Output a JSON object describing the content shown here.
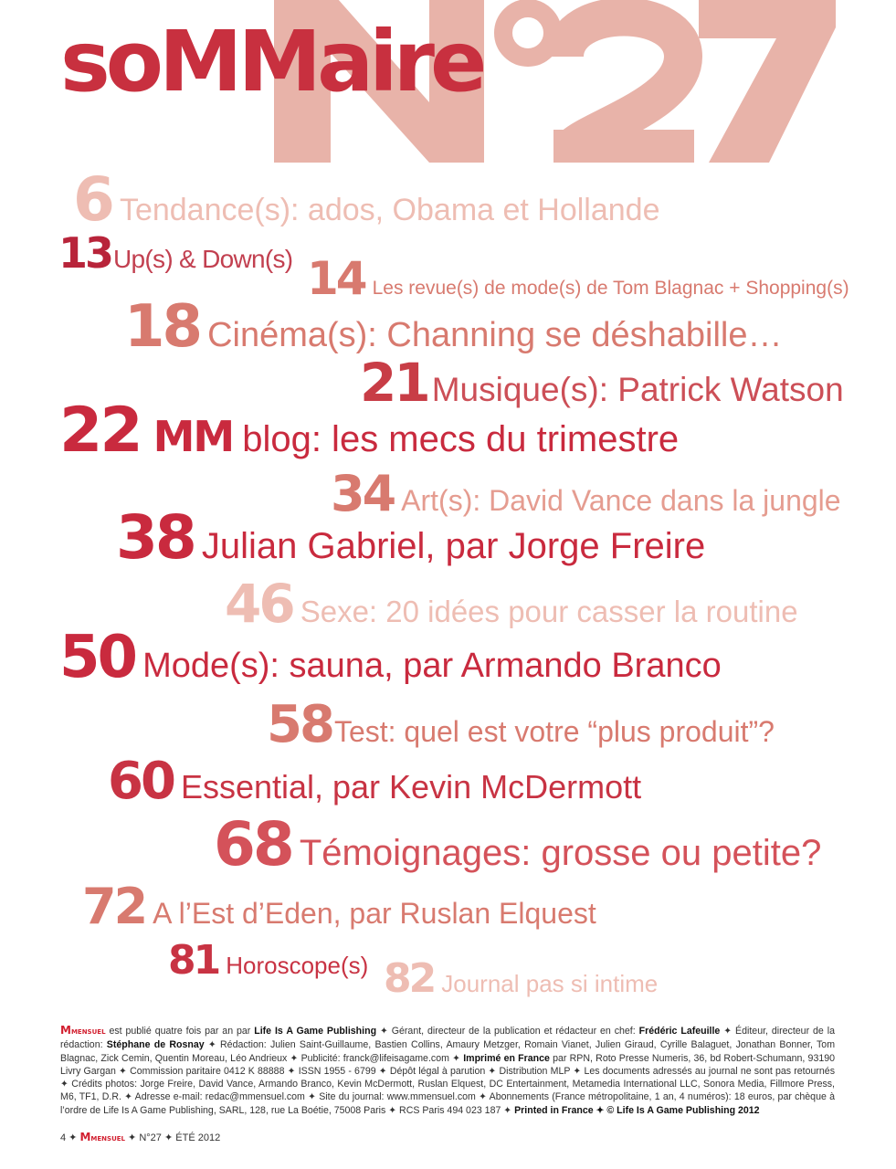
{
  "header": {
    "title": "soMMaire",
    "issue": "N°27"
  },
  "colors": {
    "crimson": "#c92a3e",
    "salmon": "#d87a6f",
    "pale": "#eebdb3",
    "issue_number": "#e8b3a9"
  },
  "entries": [
    {
      "page": "6",
      "text": "Tendance(s): ados, Obama et Hollande"
    },
    {
      "page": "13",
      "text": "Up(s) & Down(s)"
    },
    {
      "page": "14",
      "text": "Les revue(s) de mode(s) de Tom Blagnac + Shopping(s)"
    },
    {
      "page": "18",
      "text": "Cinéma(s): Channing se déshabille…"
    },
    {
      "page": "21",
      "text": "Musique(s): Patrick Watson"
    },
    {
      "page": "22",
      "prefix": "MM",
      "text": "blog: les mecs du trimestre"
    },
    {
      "page": "34",
      "text": "Art(s): David Vance dans la jungle"
    },
    {
      "page": "38",
      "text": "Julian Gabriel, par Jorge Freire"
    },
    {
      "page": "46",
      "text": "Sexe: 20 idées pour casser la routine"
    },
    {
      "page": "50",
      "text": "Mode(s): sauna, par Armando Branco"
    },
    {
      "page": "58",
      "text": "Test: quel est votre “plus produit”?"
    },
    {
      "page": "60",
      "text": "Essential, par Kevin McDermott"
    },
    {
      "page": "68",
      "text": "Témoignages: grosse ou petite?"
    },
    {
      "page": "72",
      "text": "A l’Est d’Eden, par Ruslan Elquest"
    },
    {
      "page": "81",
      "text": "Horoscope(s)"
    },
    {
      "page": "82",
      "text": "Journal pas si intime"
    }
  ],
  "colophon": {
    "brand": "M",
    "brand_small": "MENSUEL",
    "segments": [
      {
        "text": " est publié quatre fois par an par "
      },
      {
        "text": "Life Is A Game Publishing",
        "bold": true
      },
      {
        "text": " ✦ Gérant, directeur de la publication et rédacteur en chef: "
      },
      {
        "text": "Frédéric Lafeuille",
        "bold": true
      },
      {
        "text": " ✦ Éditeur, directeur de la rédaction: "
      },
      {
        "text": "Stéphane de Rosnay",
        "bold": true
      },
      {
        "text": " ✦ Rédaction: Julien Saint-Guillaume, Bastien Collins, Amaury Metzger, Romain Vianet, Julien Giraud, Cyrille Balaguet, Jonathan Bonner, Tom Blagnac, Zick Cemin, Quentin Moreau, Léo Andrieux ✦ Publicité: franck@lifeisagame.com ✦ "
      },
      {
        "text": "Imprimé en France",
        "bold": true
      },
      {
        "text": " par RPN, Roto Presse Numeris, 36, bd Robert-Schumann, 93190 Livry Gargan ✦ Commission paritaire 0412 K 88888 ✦ ISSN 1955 - 6799 ✦ Dépôt légal à parution ✦ Distribution MLP ✦ Les documents adressés au journal ne sont pas retournés ✦ Crédits photos: Jorge Freire, David Vance, Armando Branco, Kevin McDermott, Ruslan Elquest, DC Entertainment, Metamedia International LLC, Sonora Media, Fillmore Press, M6, TF1, D.R. ✦ Adresse e-mail: redac@mmensuel.com ✦ Site du journal: www.mmensuel.com ✦ Abonnements (France métropolitaine, 1 an, 4 numéros): 18 euros, par chèque à l’ordre de Life Is A Game Publishing, SARL, 128, rue La Boétie, 75008 Paris ✦ RCS Paris 494 023 187 ✦ "
      },
      {
        "text": "Printed in France ✦ © Life Is A Game Publishing 2012",
        "bold": true
      }
    ]
  },
  "folio": {
    "page": "4",
    "brand": "M",
    "brand_small": "MENSUEL",
    "issue": "N°27",
    "season": "ÉTÉ 2012"
  }
}
